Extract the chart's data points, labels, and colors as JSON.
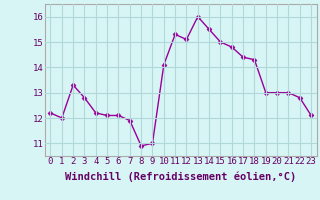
{
  "x": [
    0,
    1,
    2,
    3,
    4,
    5,
    6,
    7,
    8,
    9,
    10,
    11,
    12,
    13,
    14,
    15,
    16,
    17,
    18,
    19,
    20,
    21,
    22,
    23
  ],
  "y": [
    12.2,
    12.0,
    13.3,
    12.8,
    12.2,
    12.1,
    12.1,
    11.9,
    10.9,
    11.0,
    14.1,
    15.3,
    15.1,
    16.0,
    15.5,
    15.0,
    14.8,
    14.4,
    14.3,
    13.0,
    13.0,
    13.0,
    12.8,
    12.1
  ],
  "line_color": "#990099",
  "marker": "D",
  "marker_size": 2.5,
  "bg_color": "#d8f5f5",
  "grid_color": "#b0d8d8",
  "xlabel": "Windchill (Refroidissement éolien,°C)",
  "ylim": [
    10.5,
    16.5
  ],
  "xlim": [
    -0.5,
    23.5
  ],
  "yticks": [
    11,
    12,
    13,
    14,
    15,
    16
  ],
  "xticks": [
    0,
    1,
    2,
    3,
    4,
    5,
    6,
    7,
    8,
    9,
    10,
    11,
    12,
    13,
    14,
    15,
    16,
    17,
    18,
    19,
    20,
    21,
    22,
    23
  ],
  "tick_fontsize": 6.5,
  "xlabel_fontsize": 7.5,
  "label_color": "#660066"
}
